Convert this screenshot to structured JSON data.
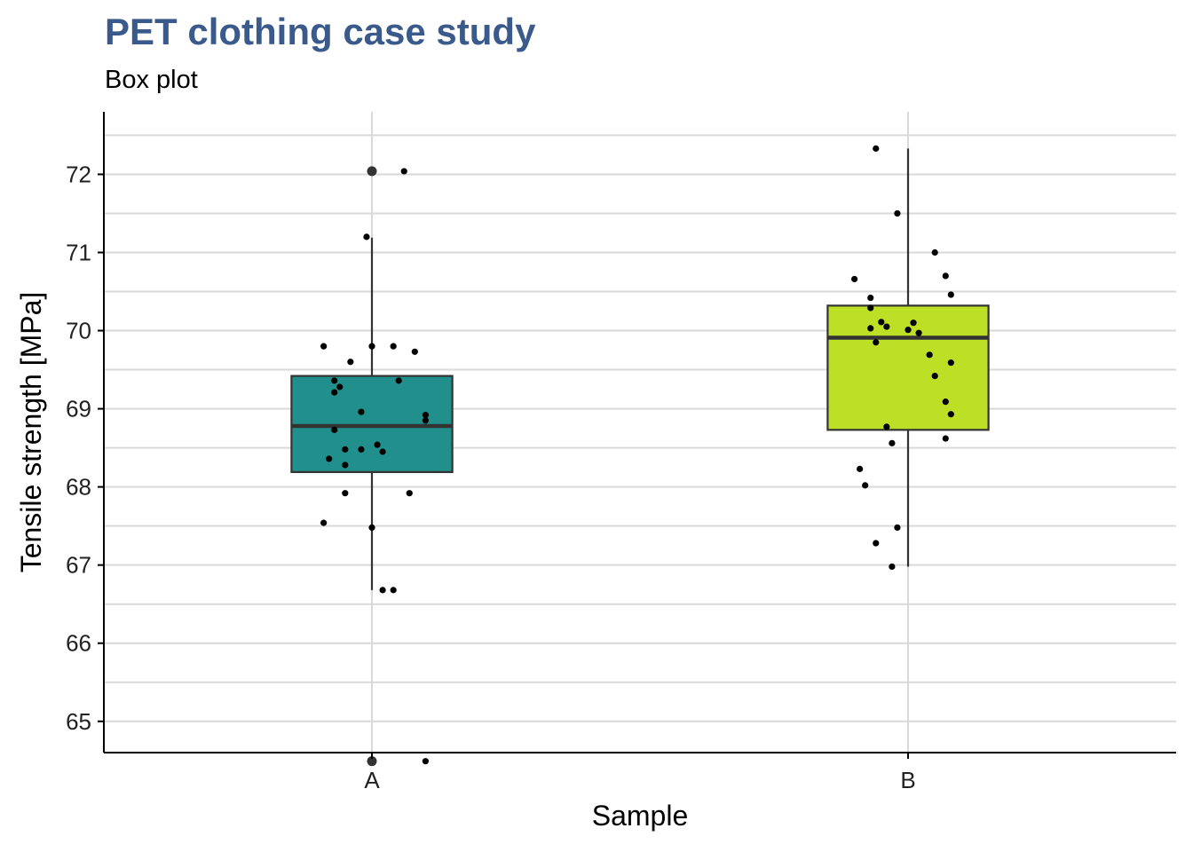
{
  "chart_data": {
    "type": "box",
    "title": "PET clothing case study",
    "subtitle": "Box plot",
    "xlabel": "Sample",
    "ylabel": "Tensile strength [MPa]",
    "ylim": [
      64.6,
      72.8
    ],
    "yticks": [
      65,
      66,
      67,
      68,
      69,
      70,
      71,
      72
    ],
    "grid": true,
    "categories": [
      "A",
      "B"
    ],
    "series": [
      {
        "name": "A",
        "color": "#21908c",
        "box": {
          "lower_whisker": 66.68,
          "q1": 68.19,
          "median": 68.78,
          "q3": 69.42,
          "upper_whisker": 71.19
        },
        "outliers": [
          72.04,
          64.49
        ],
        "points": [
          [
            0.06,
            72.04
          ],
          [
            -0.01,
            71.2
          ],
          [
            -0.09,
            69.8
          ],
          [
            -0.04,
            69.6
          ],
          [
            0.0,
            69.8
          ],
          [
            0.04,
            69.8
          ],
          [
            0.08,
            69.73
          ],
          [
            -0.07,
            69.36
          ],
          [
            -0.06,
            69.28
          ],
          [
            -0.07,
            69.21
          ],
          [
            0.05,
            69.36
          ],
          [
            -0.02,
            68.96
          ],
          [
            0.1,
            68.92
          ],
          [
            0.1,
            68.85
          ],
          [
            -0.07,
            68.73
          ],
          [
            -0.05,
            68.48
          ],
          [
            -0.02,
            68.48
          ],
          [
            0.01,
            68.54
          ],
          [
            0.02,
            68.45
          ],
          [
            -0.08,
            68.36
          ],
          [
            -0.05,
            68.28
          ],
          [
            -0.05,
            67.92
          ],
          [
            0.07,
            67.92
          ],
          [
            -0.09,
            67.54
          ],
          [
            0.0,
            67.48
          ],
          [
            0.02,
            66.68
          ],
          [
            0.04,
            66.68
          ],
          [
            0.1,
            64.49
          ]
        ]
      },
      {
        "name": "B",
        "color": "#bddf26",
        "box": {
          "lower_whisker": 66.98,
          "q1": 68.73,
          "median": 69.91,
          "q3": 70.32,
          "upper_whisker": 72.33
        },
        "outliers": [],
        "points": [
          [
            -0.06,
            72.33
          ],
          [
            -0.02,
            71.5
          ],
          [
            0.05,
            71.0
          ],
          [
            -0.1,
            70.66
          ],
          [
            0.07,
            70.7
          ],
          [
            0.08,
            70.46
          ],
          [
            -0.07,
            70.42
          ],
          [
            -0.07,
            70.29
          ],
          [
            -0.05,
            70.11
          ],
          [
            -0.04,
            70.05
          ],
          [
            -0.07,
            70.03
          ],
          [
            0.01,
            70.1
          ],
          [
            0.0,
            70.01
          ],
          [
            0.02,
            69.97
          ],
          [
            -0.06,
            69.85
          ],
          [
            0.04,
            69.69
          ],
          [
            0.08,
            69.59
          ],
          [
            0.05,
            69.42
          ],
          [
            0.07,
            69.09
          ],
          [
            0.08,
            68.93
          ],
          [
            -0.04,
            68.77
          ],
          [
            -0.03,
            68.56
          ],
          [
            0.07,
            68.62
          ],
          [
            -0.09,
            68.23
          ],
          [
            -0.08,
            68.02
          ],
          [
            -0.02,
            67.48
          ],
          [
            -0.06,
            67.28
          ],
          [
            -0.03,
            66.98
          ]
        ]
      }
    ]
  }
}
